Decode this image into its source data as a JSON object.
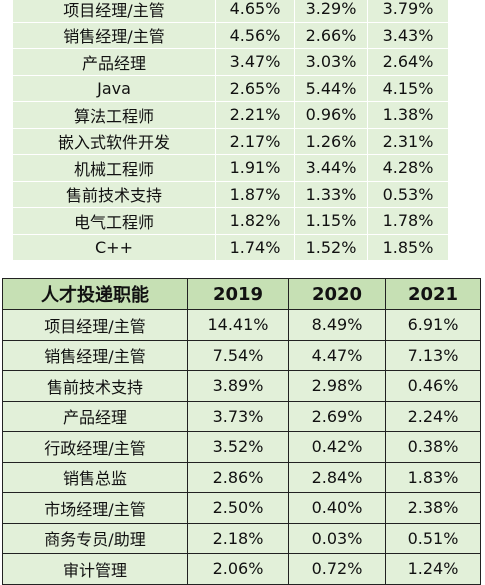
{
  "top_table": {
    "rows": [
      {
        "label": "项目经理/主管",
        "v1": "4.65%",
        "v2": "3.29%",
        "v3": "3.79%"
      },
      {
        "label": "销售经理/主管",
        "v1": "4.56%",
        "v2": "2.66%",
        "v3": "3.43%"
      },
      {
        "label": "产品经理",
        "v1": "3.47%",
        "v2": "3.03%",
        "v3": "2.64%"
      },
      {
        "label": "Java",
        "v1": "2.65%",
        "v2": "5.44%",
        "v3": "4.15%"
      },
      {
        "label": "算法工程师",
        "v1": "2.21%",
        "v2": "0.96%",
        "v3": "1.38%"
      },
      {
        "label": "嵌入式软件开发",
        "v1": "2.17%",
        "v2": "1.26%",
        "v3": "2.31%"
      },
      {
        "label": "机械工程师",
        "v1": "1.91%",
        "v2": "3.44%",
        "v3": "4.28%"
      },
      {
        "label": "售前技术支持",
        "v1": "1.87%",
        "v2": "1.33%",
        "v3": "0.53%"
      },
      {
        "label": "电气工程师",
        "v1": "1.82%",
        "v2": "1.15%",
        "v3": "1.78%"
      },
      {
        "label": "C++",
        "v1": "1.74%",
        "v2": "1.52%",
        "v3": "1.85%"
      }
    ]
  },
  "bottom_table": {
    "headers": {
      "label": "人才投递职能",
      "y1": "2019",
      "y2": "2020",
      "y3": "2021"
    },
    "rows": [
      {
        "label": "项目经理/主管",
        "v1": "14.41%",
        "v2": "8.49%",
        "v3": "6.91%"
      },
      {
        "label": "销售经理/主管",
        "v1": "7.54%",
        "v2": "4.47%",
        "v3": "7.13%"
      },
      {
        "label": "售前技术支持",
        "v1": "3.89%",
        "v2": "2.98%",
        "v3": "0.46%"
      },
      {
        "label": "产品经理",
        "v1": "3.73%",
        "v2": "2.69%",
        "v3": "2.24%"
      },
      {
        "label": "行政经理/主管",
        "v1": "3.52%",
        "v2": "0.42%",
        "v3": "0.38%"
      },
      {
        "label": "销售总监",
        "v1": "2.86%",
        "v2": "2.84%",
        "v3": "1.83%"
      },
      {
        "label": "市场经理/主管",
        "v1": "2.50%",
        "v2": "0.40%",
        "v3": "2.38%"
      },
      {
        "label": "商务专员/助理",
        "v1": "2.18%",
        "v2": "0.03%",
        "v3": "0.51%"
      },
      {
        "label": "审计管理",
        "v1": "2.06%",
        "v2": "0.72%",
        "v3": "1.24%"
      }
    ]
  }
}
